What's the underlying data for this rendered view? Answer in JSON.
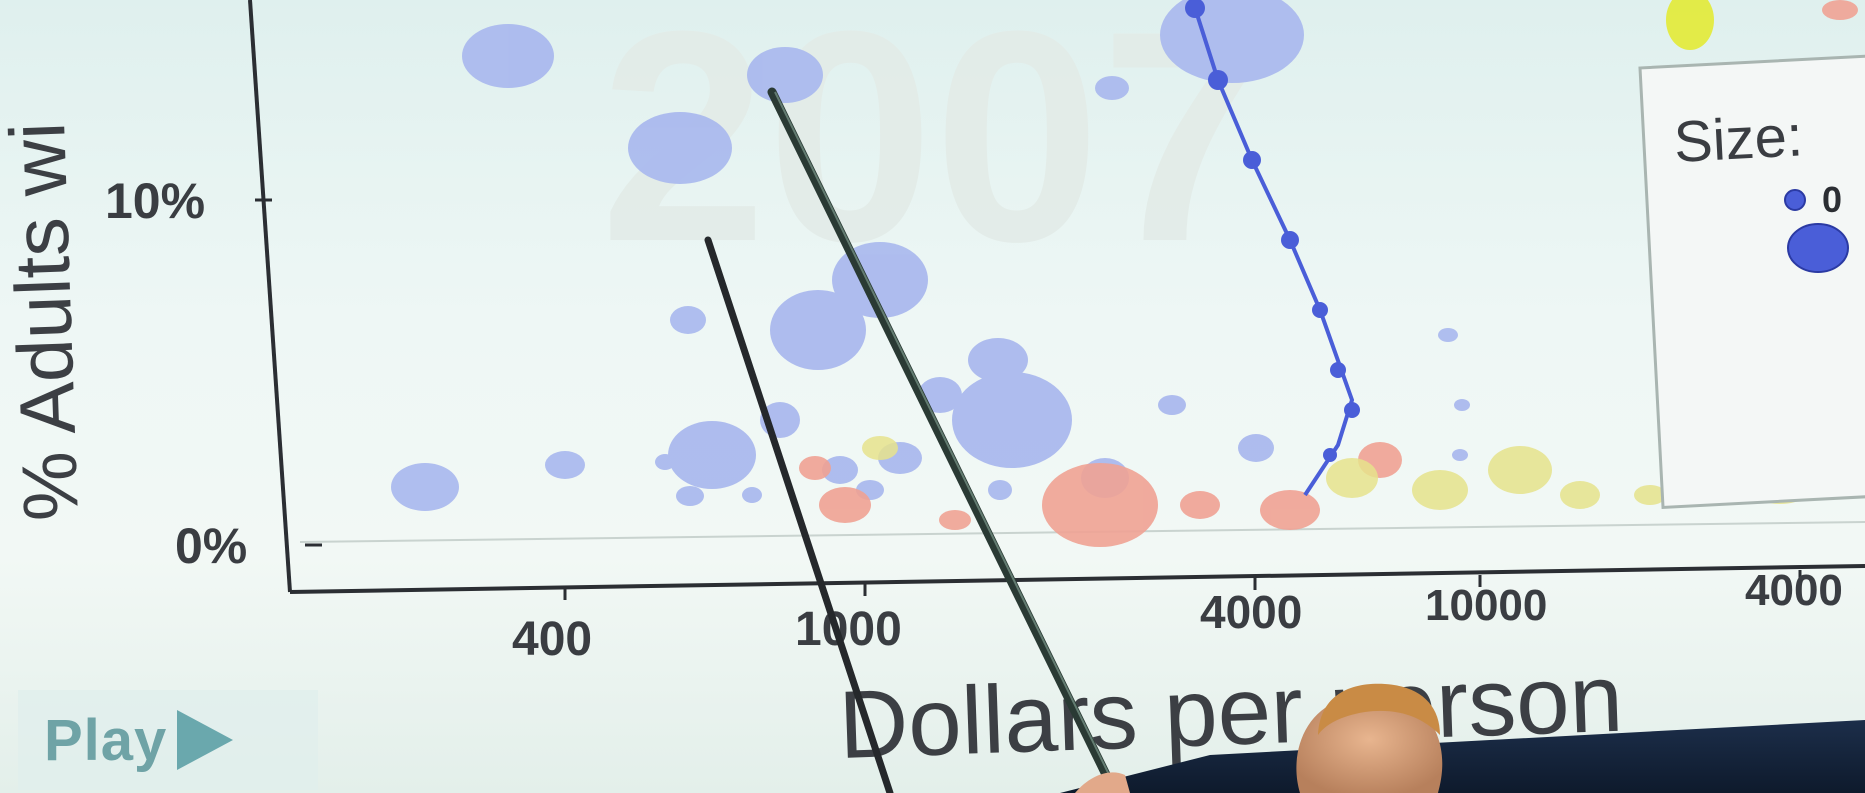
{
  "chart": {
    "year_watermark": "2007",
    "y_axis_title": "% Adults wi",
    "x_axis_title": "Dollars per person",
    "y_ticks": [
      {
        "label": "10%"
      },
      {
        "label": "0%"
      }
    ],
    "x_ticks": [
      {
        "label": "400"
      },
      {
        "label": "1000"
      },
      {
        "label": "4000"
      },
      {
        "label": "10000"
      },
      {
        "label": "4000"
      }
    ],
    "legend": {
      "size_label": "Size:",
      "small_value": "0"
    }
  },
  "controls": {
    "play_label": "Play",
    "play_icon": "play-triangle-icon"
  },
  "colors": {
    "bubble_blue": "#a9b8ee",
    "trail_blue": "#4a5ed8",
    "bubble_red": "#f0a294",
    "bubble_yellow": "#e6e38c",
    "play_teal": "#6aa8ad"
  }
}
